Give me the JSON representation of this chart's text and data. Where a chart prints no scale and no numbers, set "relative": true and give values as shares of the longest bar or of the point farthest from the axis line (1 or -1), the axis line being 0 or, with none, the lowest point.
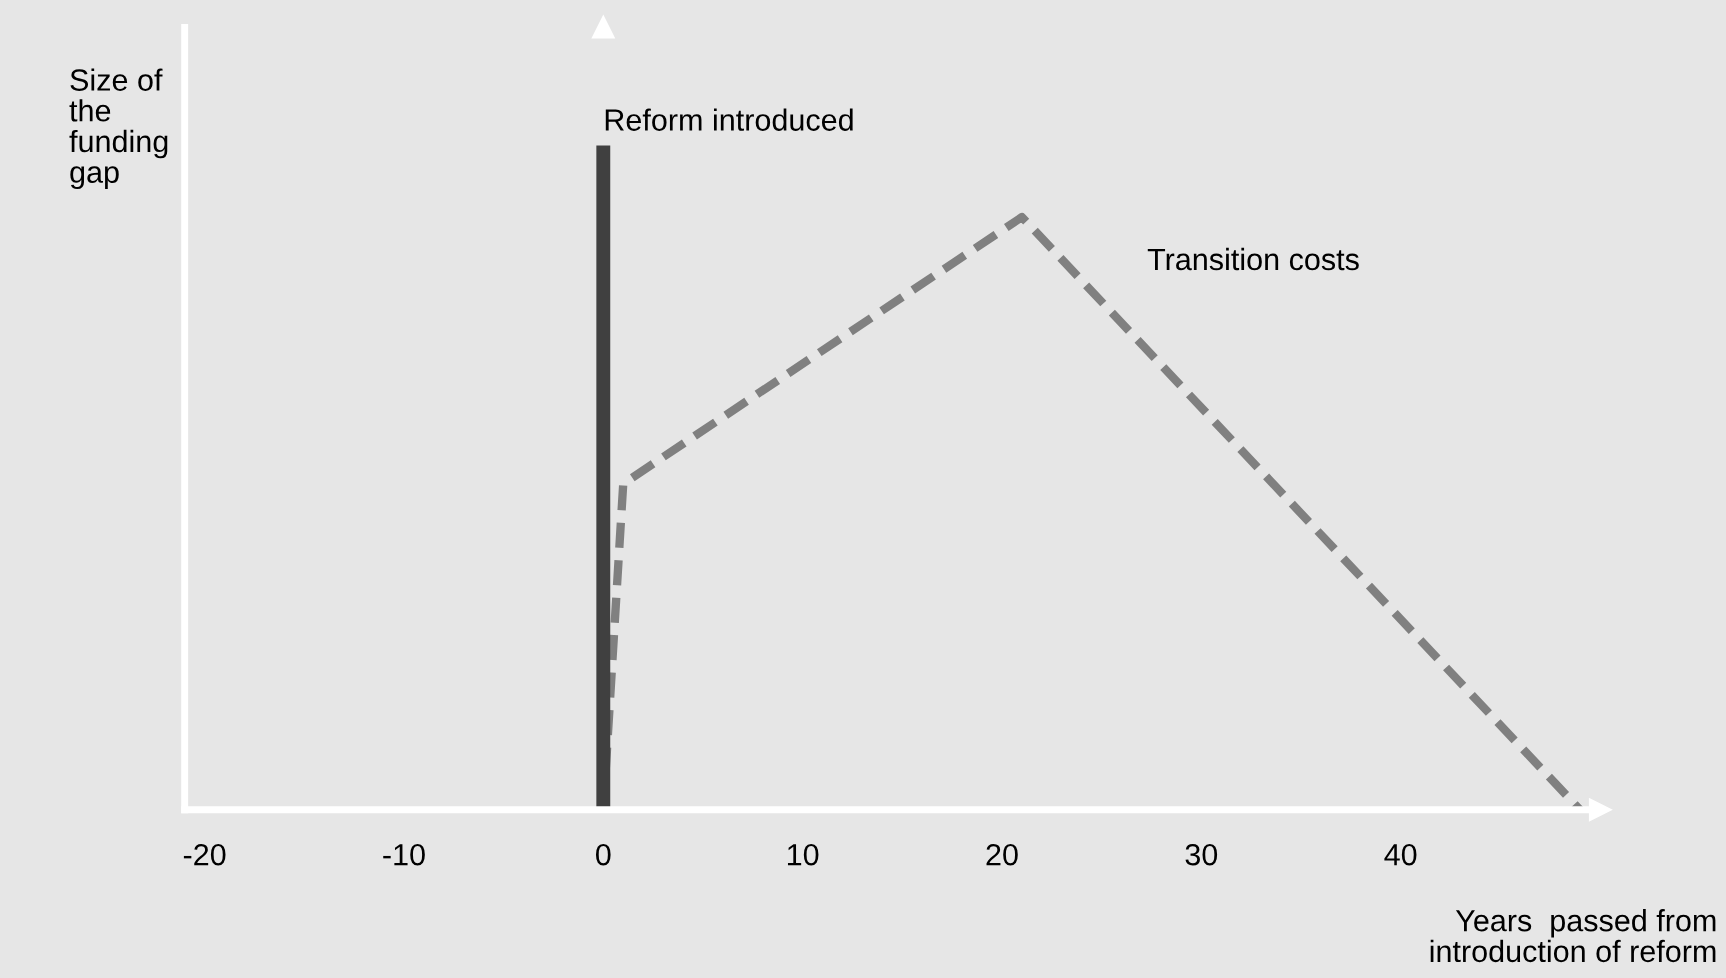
{
  "chart_data": {
    "type": "line",
    "relative": true,
    "ylabel": "Size of\nthe\nfunding\ngap",
    "xlabel": "Years  passed from\nintroduction of reform",
    "x": [
      0,
      1,
      21,
      49
    ],
    "series": [
      {
        "color": "#808080",
        "values": [
          0,
          0.55,
          1,
          0
        ]
      }
    ],
    "line_style": "dashed",
    "marker": "none",
    "xlim": [
      -21,
      50
    ],
    "xticks": [
      -20,
      -10,
      0,
      10,
      20,
      30,
      40
    ],
    "ref_lines": [
      {
        "axis": "x",
        "value": 0,
        "label": "Reform introduced",
        "color": "#404040"
      }
    ],
    "annotations": [
      "Transition costs"
    ],
    "grid": false,
    "legend": false
  }
}
